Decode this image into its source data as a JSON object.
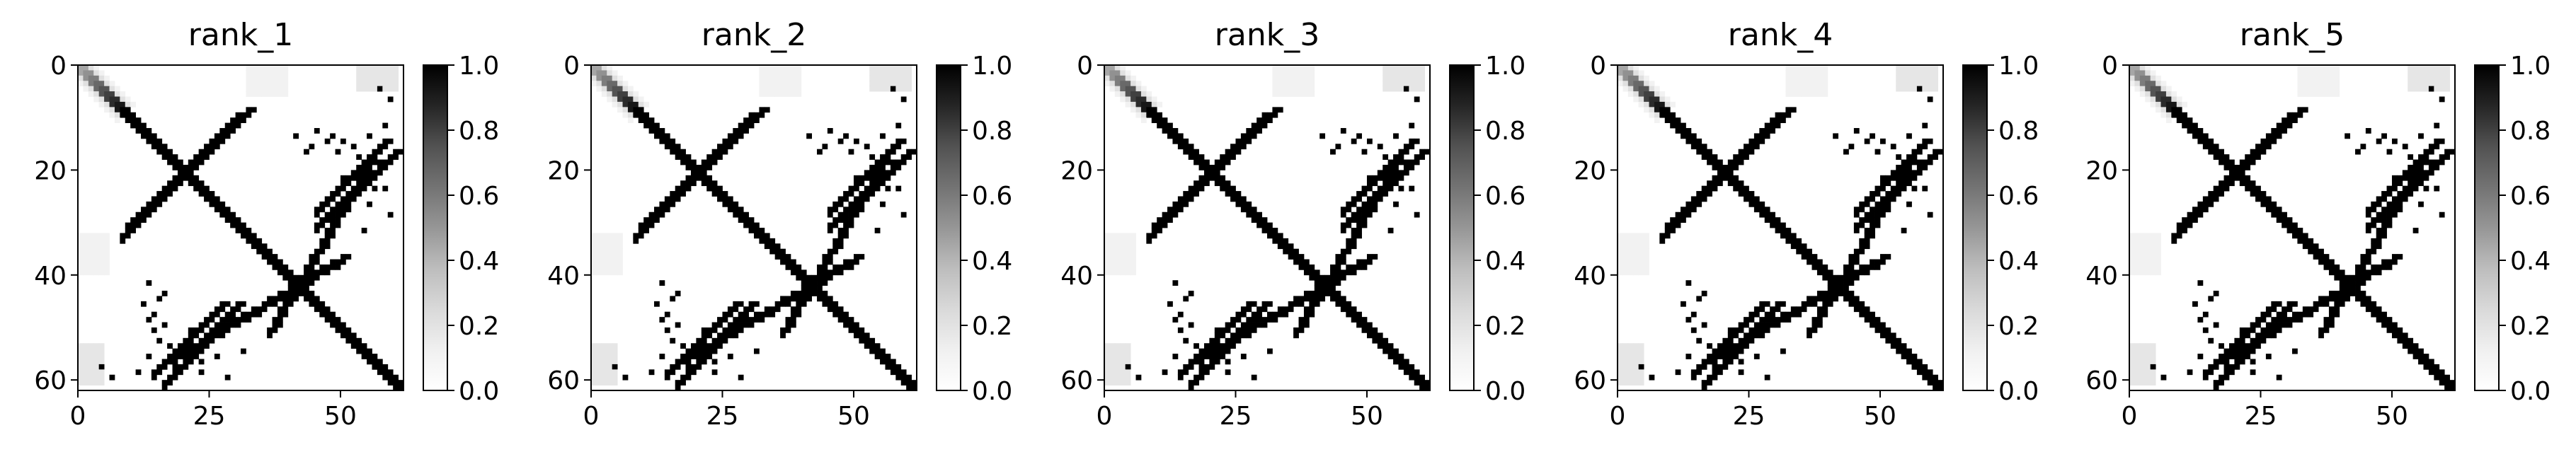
{
  "chart_data": [
    {
      "type": "heatmap",
      "title": "rank_1",
      "matrix_size": 62,
      "xlim": [
        0,
        61
      ],
      "ylim": [
        61,
        0
      ],
      "x_ticks": [
        "0",
        "25",
        "50"
      ],
      "x_tick_values": [
        0,
        25,
        50
      ],
      "y_ticks": [
        "0",
        "20",
        "40",
        "60"
      ],
      "y_tick_values": [
        0,
        20,
        40,
        60
      ],
      "colorscale": "Greys",
      "vmin": 0.0,
      "vmax": 1.0,
      "colorbar_ticks": [
        "0.0",
        "0.2",
        "0.4",
        "0.6",
        "0.8",
        "1.0"
      ],
      "colorbar_tick_values": [
        0.0,
        0.2,
        0.4,
        0.6,
        0.8,
        1.0
      ],
      "features": {
        "main_diagonal": {
          "from": 0,
          "to": 61,
          "value": 1.0,
          "faded_until": 8
        },
        "antidiagonal_1": {
          "from": [
            9,
            30
          ],
          "to": [
            32,
            8
          ],
          "value": 1.0
        },
        "antidiagonal_2": {
          "from": [
            36,
            50
          ],
          "to": [
            55,
            18
          ],
          "value": 1.0
        },
        "antidiagonal_3": {
          "from": [
            16,
            60
          ],
          "to": [
            30,
            45
          ],
          "value": 1.0
        },
        "antidiagonal_4": {
          "from": [
            14,
            58
          ],
          "to": [
            27,
            45
          ],
          "value": 1.0
        }
      }
    },
    {
      "type": "heatmap",
      "title": "rank_2",
      "matrix_size": 62,
      "xlim": [
        0,
        61
      ],
      "ylim": [
        61,
        0
      ],
      "x_ticks": [
        "0",
        "25",
        "50"
      ],
      "x_tick_values": [
        0,
        25,
        50
      ],
      "y_ticks": [
        "0",
        "20",
        "40",
        "60"
      ],
      "y_tick_values": [
        0,
        20,
        40,
        60
      ],
      "colorscale": "Greys",
      "vmin": 0.0,
      "vmax": 1.0,
      "colorbar_ticks": [
        "0.0",
        "0.2",
        "0.4",
        "0.6",
        "0.8",
        "1.0"
      ],
      "colorbar_tick_values": [
        0.0,
        0.2,
        0.4,
        0.6,
        0.8,
        1.0
      ],
      "features": {
        "main_diagonal": {
          "from": 0,
          "to": 61,
          "value": 1.0,
          "faded_until": 8
        },
        "antidiagonal_1": {
          "from": [
            9,
            30
          ],
          "to": [
            32,
            8
          ],
          "value": 1.0
        },
        "antidiagonal_2": {
          "from": [
            36,
            50
          ],
          "to": [
            55,
            18
          ],
          "value": 1.0
        },
        "antidiagonal_3": {
          "from": [
            16,
            60
          ],
          "to": [
            30,
            45
          ],
          "value": 1.0
        },
        "antidiagonal_4": {
          "from": [
            14,
            58
          ],
          "to": [
            27,
            45
          ],
          "value": 1.0
        }
      }
    },
    {
      "type": "heatmap",
      "title": "rank_3",
      "matrix_size": 62,
      "xlim": [
        0,
        61
      ],
      "ylim": [
        61,
        0
      ],
      "x_ticks": [
        "0",
        "25",
        "50"
      ],
      "x_tick_values": [
        0,
        25,
        50
      ],
      "y_ticks": [
        "0",
        "20",
        "40",
        "60"
      ],
      "y_tick_values": [
        0,
        20,
        40,
        60
      ],
      "colorscale": "Greys",
      "vmin": 0.0,
      "vmax": 1.0,
      "colorbar_ticks": [
        "0.0",
        "0.2",
        "0.4",
        "0.6",
        "0.8",
        "1.0"
      ],
      "colorbar_tick_values": [
        0.0,
        0.2,
        0.4,
        0.6,
        0.8,
        1.0
      ],
      "features": {
        "main_diagonal": {
          "from": 0,
          "to": 61,
          "value": 1.0,
          "faded_until": 8
        },
        "antidiagonal_1": {
          "from": [
            9,
            30
          ],
          "to": [
            32,
            8
          ],
          "value": 1.0
        },
        "antidiagonal_2": {
          "from": [
            36,
            50
          ],
          "to": [
            55,
            18
          ],
          "value": 1.0
        },
        "antidiagonal_3": {
          "from": [
            16,
            60
          ],
          "to": [
            30,
            45
          ],
          "value": 1.0
        },
        "antidiagonal_4": {
          "from": [
            14,
            58
          ],
          "to": [
            27,
            45
          ],
          "value": 1.0
        }
      }
    },
    {
      "type": "heatmap",
      "title": "rank_4",
      "matrix_size": 62,
      "xlim": [
        0,
        61
      ],
      "ylim": [
        61,
        0
      ],
      "x_ticks": [
        "0",
        "25",
        "50"
      ],
      "x_tick_values": [
        0,
        25,
        50
      ],
      "y_ticks": [
        "0",
        "20",
        "40",
        "60"
      ],
      "y_tick_values": [
        0,
        20,
        40,
        60
      ],
      "colorscale": "Greys",
      "vmin": 0.0,
      "vmax": 1.0,
      "colorbar_ticks": [
        "0.0",
        "0.2",
        "0.4",
        "0.6",
        "0.8",
        "1.0"
      ],
      "colorbar_tick_values": [
        0.0,
        0.2,
        0.4,
        0.6,
        0.8,
        1.0
      ],
      "features": {
        "main_diagonal": {
          "from": 0,
          "to": 61,
          "value": 1.0,
          "faded_until": 8
        },
        "antidiagonal_1": {
          "from": [
            9,
            30
          ],
          "to": [
            32,
            8
          ],
          "value": 1.0
        },
        "antidiagonal_2": {
          "from": [
            36,
            50
          ],
          "to": [
            55,
            18
          ],
          "value": 1.0
        },
        "antidiagonal_3": {
          "from": [
            16,
            60
          ],
          "to": [
            30,
            45
          ],
          "value": 1.0
        },
        "antidiagonal_4": {
          "from": [
            14,
            58
          ],
          "to": [
            27,
            45
          ],
          "value": 1.0
        }
      }
    },
    {
      "type": "heatmap",
      "title": "rank_5",
      "matrix_size": 62,
      "xlim": [
        0,
        61
      ],
      "ylim": [
        61,
        0
      ],
      "x_ticks": [
        "0",
        "25",
        "50"
      ],
      "x_tick_values": [
        0,
        25,
        50
      ],
      "y_ticks": [
        "0",
        "20",
        "40",
        "60"
      ],
      "y_tick_values": [
        0,
        20,
        40,
        60
      ],
      "colorscale": "Greys",
      "vmin": 0.0,
      "vmax": 1.0,
      "colorbar_ticks": [
        "0.0",
        "0.2",
        "0.4",
        "0.6",
        "0.8",
        "1.0"
      ],
      "colorbar_tick_values": [
        0.0,
        0.2,
        0.4,
        0.6,
        0.8,
        1.0
      ],
      "features": {
        "main_diagonal": {
          "from": 0,
          "to": 61,
          "value": 1.0,
          "faded_until": 8
        },
        "antidiagonal_1": {
          "from": [
            9,
            30
          ],
          "to": [
            32,
            8
          ],
          "value": 1.0
        },
        "antidiagonal_2": {
          "from": [
            36,
            50
          ],
          "to": [
            55,
            18
          ],
          "value": 1.0
        },
        "antidiagonal_3": {
          "from": [
            16,
            60
          ],
          "to": [
            30,
            45
          ],
          "value": 1.0
        },
        "antidiagonal_4": {
          "from": [
            14,
            58
          ],
          "to": [
            27,
            45
          ],
          "value": 1.0
        }
      }
    }
  ]
}
